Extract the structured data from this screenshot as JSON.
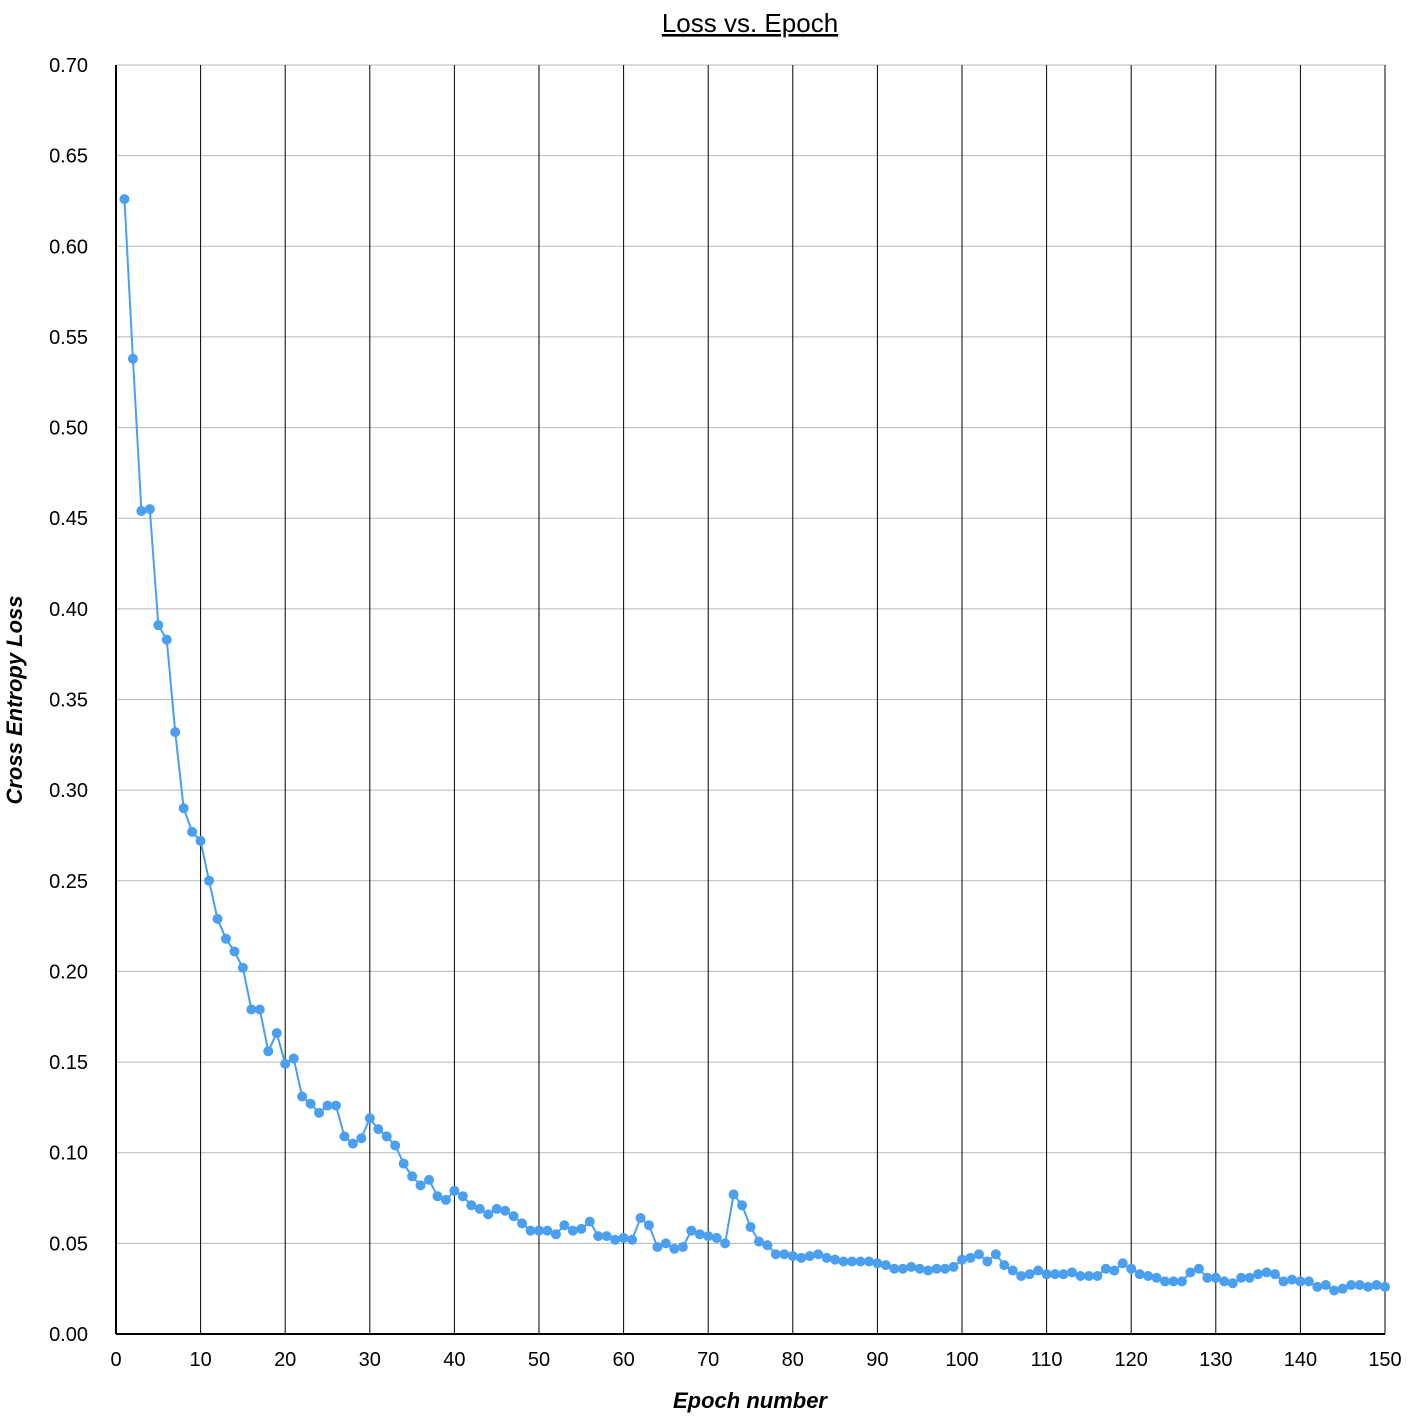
{
  "chart_data": {
    "type": "line",
    "title": "Loss vs. Epoch",
    "xlabel": "Epoch number",
    "ylabel": "Cross Entropy Loss",
    "xlim": [
      0,
      150
    ],
    "ylim": [
      0,
      0.7
    ],
    "x_ticks": [
      0,
      10,
      20,
      30,
      40,
      50,
      60,
      70,
      80,
      90,
      100,
      110,
      120,
      130,
      140,
      150
    ],
    "x_tick_labels": [
      "0",
      "10",
      "20",
      "30",
      "40",
      "50",
      "60",
      "70",
      "80",
      "90",
      "100",
      "110",
      "120",
      "130",
      "140",
      "150"
    ],
    "y_ticks": [
      0,
      0.05,
      0.1,
      0.15,
      0.2,
      0.25,
      0.3,
      0.35,
      0.4,
      0.45,
      0.5,
      0.55,
      0.6,
      0.65,
      0.7
    ],
    "y_tick_labels": [
      "0.00",
      "0.05",
      "0.10",
      "0.15",
      "0.20",
      "0.25",
      "0.30",
      "0.35",
      "0.40",
      "0.45",
      "0.50",
      "0.55",
      "0.60",
      "0.65",
      "0.70"
    ],
    "grid": true,
    "line_color": "#4a9ff0",
    "series": [
      {
        "x": [
          1,
          2,
          3,
          4,
          5,
          6,
          7,
          8,
          9,
          10,
          11,
          12,
          13,
          14,
          15,
          16,
          17,
          18,
          19,
          20,
          21,
          22,
          23,
          24,
          25,
          26,
          27,
          28,
          29,
          30,
          31,
          32,
          33,
          34,
          35,
          36,
          37,
          38,
          39,
          40,
          41,
          42,
          43,
          44,
          45,
          46,
          47,
          48,
          49,
          50,
          51,
          52,
          53,
          54,
          55,
          56,
          57,
          58,
          59,
          60,
          61,
          62,
          63,
          64,
          65,
          66,
          67,
          68,
          69,
          70,
          71,
          72,
          73,
          74,
          75,
          76,
          77,
          78,
          79,
          80,
          81,
          82,
          83,
          84,
          85,
          86,
          87,
          88,
          89,
          90,
          91,
          92,
          93,
          94,
          95,
          96,
          97,
          98,
          99,
          100,
          101,
          102,
          103,
          104,
          105,
          106,
          107,
          108,
          109,
          110,
          111,
          112,
          113,
          114,
          115,
          116,
          117,
          118,
          119,
          120,
          121,
          122,
          123,
          124,
          125,
          126,
          127,
          128,
          129,
          130,
          131,
          132,
          133,
          134,
          135,
          136,
          137,
          138,
          139,
          140,
          141,
          142,
          143,
          144,
          145,
          146,
          147,
          148,
          149,
          150
        ],
        "values": [
          0.626,
          0.538,
          0.454,
          0.455,
          0.391,
          0.383,
          0.332,
          0.29,
          0.277,
          0.272,
          0.25,
          0.229,
          0.218,
          0.211,
          0.202,
          0.179,
          0.179,
          0.156,
          0.166,
          0.149,
          0.152,
          0.131,
          0.127,
          0.122,
          0.126,
          0.126,
          0.109,
          0.105,
          0.108,
          0.119,
          0.113,
          0.109,
          0.104,
          0.094,
          0.087,
          0.082,
          0.085,
          0.076,
          0.074,
          0.079,
          0.076,
          0.071,
          0.069,
          0.066,
          0.069,
          0.068,
          0.065,
          0.061,
          0.057,
          0.057,
          0.057,
          0.055,
          0.06,
          0.057,
          0.058,
          0.062,
          0.054,
          0.054,
          0.052,
          0.053,
          0.052,
          0.064,
          0.06,
          0.048,
          0.05,
          0.047,
          0.048,
          0.057,
          0.055,
          0.054,
          0.053,
          0.05,
          0.077,
          0.071,
          0.059,
          0.051,
          0.049,
          0.044,
          0.044,
          0.043,
          0.042,
          0.043,
          0.044,
          0.042,
          0.041,
          0.04,
          0.04,
          0.04,
          0.04,
          0.039,
          0.038,
          0.036,
          0.036,
          0.037,
          0.036,
          0.035,
          0.036,
          0.036,
          0.037,
          0.041,
          0.042,
          0.044,
          0.04,
          0.044,
          0.038,
          0.035,
          0.032,
          0.033,
          0.035,
          0.033,
          0.033,
          0.033,
          0.034,
          0.032,
          0.032,
          0.032,
          0.036,
          0.035,
          0.039,
          0.036,
          0.033,
          0.032,
          0.031,
          0.029,
          0.029,
          0.029,
          0.034,
          0.036,
          0.031,
          0.031,
          0.029,
          0.028,
          0.031,
          0.031,
          0.033,
          0.034,
          0.033,
          0.029,
          0.03,
          0.029,
          0.029,
          0.026,
          0.027,
          0.024,
          0.025,
          0.027,
          0.027,
          0.026,
          0.027,
          0.026
        ]
      }
    ]
  }
}
